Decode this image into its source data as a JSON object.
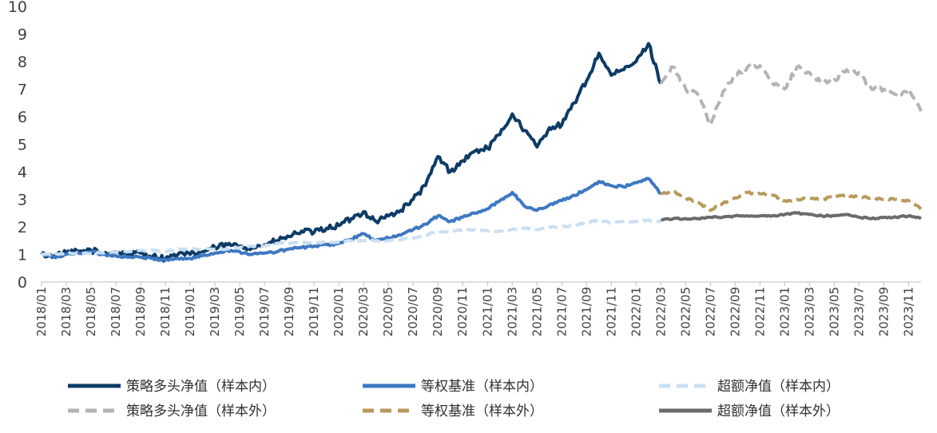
{
  "chart_data": {
    "type": "line",
    "title": "",
    "xlabel": "",
    "ylabel": "",
    "ylim": [
      0,
      10
    ],
    "yticks": [
      0,
      1,
      2,
      3,
      4,
      5,
      6,
      7,
      8,
      9,
      10
    ],
    "ytick_labels": [
      "0",
      "1",
      "2",
      "3",
      "4",
      "5",
      "6",
      "7",
      "8",
      "9",
      "10"
    ],
    "x_tick_labels": [
      "2018/01",
      "2018/03",
      "2018/05",
      "2018/07",
      "2018/09",
      "2018/11",
      "2019/01",
      "2019/03",
      "2019/05",
      "2019/07",
      "2019/09",
      "2019/11",
      "2020/01",
      "2020/03",
      "2020/05",
      "2020/07",
      "2020/09",
      "2020/11",
      "2021/01",
      "2021/03",
      "2021/05",
      "2021/07",
      "2021/09",
      "2021/11",
      "2022/01",
      "2022/03",
      "2022/05",
      "2022/07",
      "2022/09",
      "2022/11",
      "2023/01",
      "2023/03",
      "2023/05",
      "2023/07",
      "2023/09",
      "2023/11"
    ],
    "x_unit": "months since 2018/01",
    "x_range": [
      0,
      71
    ],
    "grid": false,
    "legend_position": "bottom",
    "series": [
      {
        "name": "策略多头净值（样本内）",
        "color": "#0d3b66",
        "style": "solid",
        "x": [
          0,
          1,
          2,
          3,
          4,
          5,
          6,
          7,
          8,
          9,
          10,
          11,
          12,
          13,
          14,
          15,
          16,
          17,
          18,
          19,
          20,
          21,
          22,
          23,
          24,
          25,
          26,
          27,
          28,
          29,
          30,
          31,
          32,
          33,
          34,
          35,
          36,
          37,
          38,
          39,
          40,
          41,
          42,
          43,
          44,
          45,
          46,
          47,
          48,
          49,
          50
        ],
        "values": [
          1.0,
          0.95,
          1.05,
          1.1,
          1.15,
          1.05,
          1.1,
          1.0,
          1.05,
          0.95,
          0.85,
          1.0,
          1.0,
          1.1,
          1.25,
          1.35,
          1.3,
          1.25,
          1.35,
          1.5,
          1.65,
          1.85,
          1.8,
          1.95,
          2.05,
          2.3,
          2.55,
          2.2,
          2.4,
          2.6,
          3.0,
          3.5,
          4.55,
          4.0,
          4.4,
          4.75,
          4.85,
          5.35,
          6.1,
          5.5,
          4.9,
          5.6,
          5.7,
          6.5,
          7.3,
          8.3,
          7.5,
          7.7,
          8.0,
          8.65,
          7.2
        ]
      },
      {
        "name": "等权基准（样本内）",
        "color": "#3d78c2",
        "style": "solid",
        "x": [
          0,
          1,
          2,
          3,
          4,
          5,
          6,
          7,
          8,
          9,
          10,
          11,
          12,
          13,
          14,
          15,
          16,
          17,
          18,
          19,
          20,
          21,
          22,
          23,
          24,
          25,
          26,
          27,
          28,
          29,
          30,
          31,
          32,
          33,
          34,
          35,
          36,
          37,
          38,
          39,
          40,
          41,
          42,
          43,
          44,
          45,
          46,
          47,
          48,
          49,
          50
        ],
        "values": [
          1.0,
          0.9,
          1.0,
          1.05,
          1.1,
          1.0,
          0.95,
          0.9,
          0.9,
          0.85,
          0.8,
          0.85,
          0.85,
          0.95,
          1.05,
          1.15,
          1.1,
          1.0,
          1.05,
          1.1,
          1.2,
          1.25,
          1.3,
          1.35,
          1.4,
          1.55,
          1.75,
          1.5,
          1.6,
          1.7,
          1.9,
          2.1,
          2.4,
          2.2,
          2.35,
          2.5,
          2.65,
          2.95,
          3.25,
          2.75,
          2.6,
          2.8,
          2.95,
          3.15,
          3.35,
          3.65,
          3.5,
          3.45,
          3.6,
          3.75,
          3.2
        ]
      },
      {
        "name": "超额净值（样本内）",
        "color": "#c9dff2",
        "style": "dashed",
        "x": [
          0,
          1,
          2,
          3,
          4,
          5,
          6,
          7,
          8,
          9,
          10,
          11,
          12,
          13,
          14,
          15,
          16,
          17,
          18,
          19,
          20,
          21,
          22,
          23,
          24,
          25,
          26,
          27,
          28,
          29,
          30,
          31,
          32,
          33,
          34,
          35,
          36,
          37,
          38,
          39,
          40,
          41,
          42,
          43,
          44,
          45,
          46,
          47,
          48,
          49,
          50
        ],
        "values": [
          1.0,
          1.0,
          1.05,
          1.05,
          1.05,
          1.05,
          1.1,
          1.1,
          1.15,
          1.15,
          1.1,
          1.2,
          1.2,
          1.2,
          1.2,
          1.2,
          1.25,
          1.3,
          1.3,
          1.4,
          1.4,
          1.45,
          1.4,
          1.45,
          1.45,
          1.5,
          1.5,
          1.5,
          1.5,
          1.55,
          1.6,
          1.7,
          1.85,
          1.8,
          1.9,
          1.9,
          1.85,
          1.85,
          1.9,
          1.95,
          1.9,
          2.0,
          2.0,
          2.05,
          2.15,
          2.25,
          2.15,
          2.2,
          2.2,
          2.25,
          2.2
        ]
      },
      {
        "name": "策略多头净值（样本外）",
        "color": "#b3b3b3",
        "style": "dashed",
        "x": [
          50,
          51,
          52,
          53,
          54,
          55,
          56,
          57,
          58,
          59,
          60,
          61,
          62,
          63,
          64,
          65,
          66,
          67,
          68,
          69,
          70,
          71
        ],
        "values": [
          7.2,
          7.8,
          7.0,
          6.8,
          5.7,
          6.9,
          7.5,
          7.8,
          7.85,
          7.2,
          7.0,
          7.8,
          7.6,
          7.2,
          7.35,
          7.7,
          7.6,
          7.0,
          7.0,
          6.8,
          7.0,
          6.2
        ]
      },
      {
        "name": "等权基准（样本外）",
        "color": "#b8995a",
        "style": "dashed",
        "x": [
          50,
          51,
          52,
          53,
          54,
          55,
          56,
          57,
          58,
          59,
          60,
          61,
          62,
          63,
          64,
          65,
          66,
          67,
          68,
          69,
          70,
          71
        ],
        "values": [
          3.2,
          3.3,
          3.05,
          2.9,
          2.6,
          2.85,
          3.05,
          3.25,
          3.2,
          3.15,
          2.95,
          3.0,
          3.05,
          3.0,
          3.1,
          3.15,
          3.1,
          3.05,
          3.0,
          3.0,
          2.95,
          2.65
        ]
      },
      {
        "name": "超额净值（样本外）",
        "color": "#6b6b6b",
        "style": "solid",
        "x": [
          50,
          51,
          52,
          53,
          54,
          55,
          56,
          57,
          58,
          59,
          60,
          61,
          62,
          63,
          64,
          65,
          66,
          67,
          68,
          69,
          70,
          71
        ],
        "values": [
          2.25,
          2.3,
          2.3,
          2.3,
          2.35,
          2.35,
          2.4,
          2.4,
          2.4,
          2.4,
          2.45,
          2.5,
          2.45,
          2.4,
          2.4,
          2.45,
          2.35,
          2.3,
          2.35,
          2.35,
          2.4,
          2.3
        ]
      }
    ]
  }
}
